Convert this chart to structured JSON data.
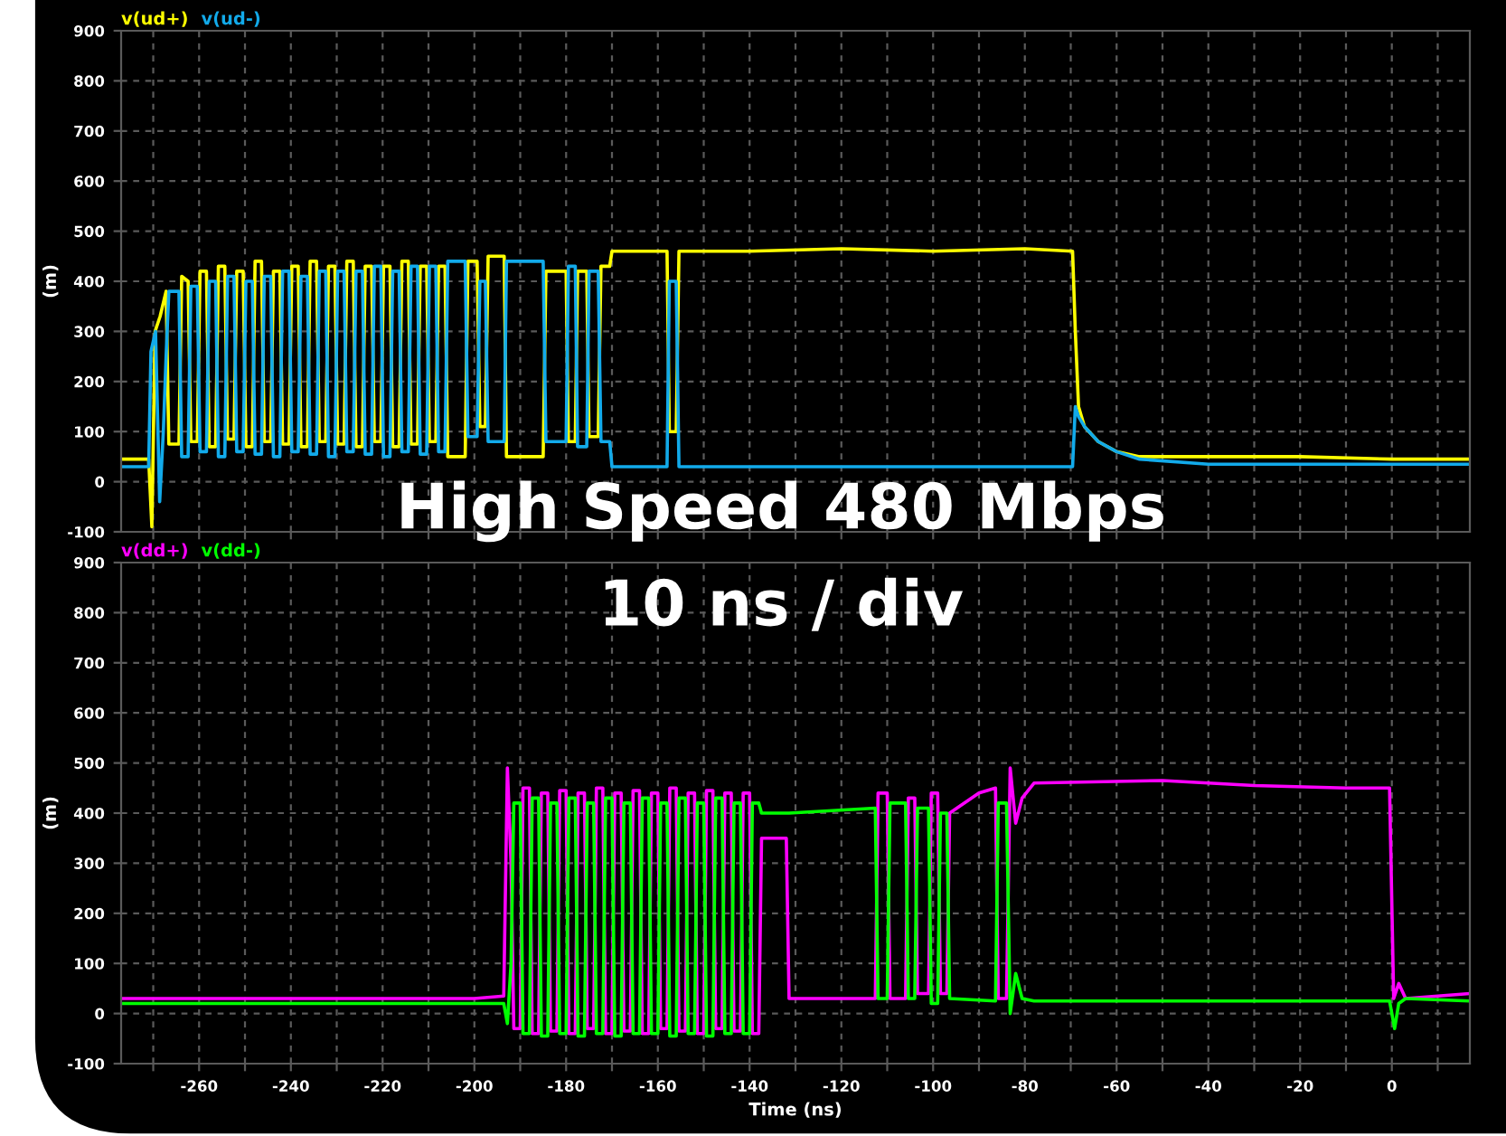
{
  "chart_data": [
    {
      "type": "line",
      "ylabel": "(m)",
      "legend": "top left",
      "grid": true,
      "tick_labels": "y",
      "xlim": [
        -277,
        17
      ],
      "ylim": [
        -100,
        900
      ],
      "xticks": [
        {
          "value": -270,
          "label": null
        },
        -260,
        {
          "value": -250,
          "label": null
        },
        -240,
        {
          "value": -230,
          "label": null
        },
        -220,
        {
          "value": -210,
          "label": null
        },
        -200,
        {
          "value": -190,
          "label": null
        },
        -180,
        {
          "value": -170,
          "label": null
        },
        -160,
        {
          "value": -150,
          "label": null
        },
        -140,
        {
          "value": -130,
          "label": null
        },
        -120,
        {
          "value": -110,
          "label": null
        },
        -100,
        {
          "value": -90,
          "label": null
        },
        -80,
        {
          "value": -70,
          "label": null
        },
        -60,
        {
          "value": -50,
          "label": null
        },
        -40,
        {
          "value": -30,
          "label": null
        },
        -20,
        {
          "value": -10,
          "label": null
        },
        0,
        {
          "value": 10,
          "label": null
        }
      ],
      "yticks": [
        -100,
        0,
        100,
        200,
        300,
        400,
        500,
        600,
        700,
        800,
        900
      ],
      "series": [
        {
          "name": "v(ud+)",
          "color": "#ffff00",
          "x": [
            -277,
            -271,
            -270.3,
            -269.6,
            -268.5,
            -267.2,
            -266.6,
            -264.4,
            -263.8,
            -262.4,
            -261.8,
            -260.4,
            -259.8,
            -258.4,
            -257.8,
            -256.4,
            -255.8,
            -254.4,
            -253.8,
            -252.4,
            -251.8,
            -250.4,
            -249.8,
            -248.4,
            -247.8,
            -246.4,
            -245.8,
            -244.4,
            -243.8,
            -242.4,
            -241.8,
            -240.4,
            -239.8,
            -238.4,
            -237.8,
            -236.4,
            -235.8,
            -234.4,
            -233.8,
            -232.4,
            -231.8,
            -230.4,
            -229.8,
            -228.4,
            -227.8,
            -226.4,
            -225.8,
            -224.4,
            -223.8,
            -222.4,
            -221.8,
            -220.4,
            -219.8,
            -218.4,
            -217.8,
            -216.4,
            -215.8,
            -214.4,
            -213.8,
            -212.4,
            -211.8,
            -210.4,
            -209.8,
            -208.4,
            -207.8,
            -206.4,
            -205.8,
            -202,
            -201.4,
            -199.4,
            -198.8,
            -197.6,
            -197,
            -193.5,
            -193,
            -185,
            -184.4,
            -180,
            -179.5,
            -178,
            -177.5,
            -175.5,
            -175,
            -173,
            -172.4,
            -170.5,
            -170,
            -158,
            -157.5,
            -156,
            -155.4,
            -140,
            -120,
            -100,
            -80,
            -69.6,
            -69,
            -68.3,
            -67,
            -64,
            -60,
            -55,
            -40,
            -20,
            0,
            17
          ],
          "values": [
            45,
            45,
            -90,
            300,
            330,
            380,
            75,
            75,
            410,
            400,
            80,
            80,
            420,
            420,
            70,
            70,
            430,
            430,
            85,
            85,
            420,
            420,
            70,
            70,
            440,
            440,
            80,
            80,
            420,
            420,
            75,
            75,
            430,
            430,
            70,
            70,
            440,
            440,
            80,
            80,
            430,
            430,
            75,
            75,
            440,
            440,
            70,
            70,
            430,
            430,
            80,
            80,
            430,
            430,
            70,
            70,
            440,
            440,
            75,
            75,
            430,
            430,
            80,
            80,
            430,
            430,
            50,
            50,
            440,
            440,
            110,
            110,
            450,
            450,
            50,
            50,
            420,
            420,
            80,
            80,
            420,
            420,
            90,
            90,
            430,
            430,
            460,
            460,
            100,
            100,
            460,
            460,
            465,
            460,
            465,
            460,
            300,
            150,
            110,
            80,
            60,
            50,
            50,
            50,
            45,
            45
          ]
        },
        {
          "name": "v(ud-)",
          "color": "#12aaea",
          "x": [
            -277,
            -271,
            -270.5,
            -269.5,
            -268.6,
            -267.8,
            -267.2,
            -266.6,
            -264.4,
            -263.8,
            -262.4,
            -261.8,
            -260.4,
            -259.8,
            -258.4,
            -257.8,
            -256.4,
            -255.8,
            -254.4,
            -253.8,
            -252.4,
            -251.8,
            -250.4,
            -249.8,
            -248.4,
            -247.8,
            -246.4,
            -245.8,
            -244.4,
            -243.8,
            -242.4,
            -241.8,
            -240.4,
            -239.8,
            -238.4,
            -237.8,
            -236.4,
            -235.8,
            -234.4,
            -233.8,
            -232.4,
            -231.8,
            -230.4,
            -229.8,
            -228.4,
            -227.8,
            -226.4,
            -225.8,
            -224.4,
            -223.8,
            -222.4,
            -221.8,
            -220.4,
            -219.8,
            -218.4,
            -217.8,
            -216.4,
            -215.8,
            -214.4,
            -213.8,
            -212.4,
            -211.8,
            -210.4,
            -209.8,
            -208.4,
            -207.8,
            -206.4,
            -205.8,
            -202,
            -201.4,
            -199.4,
            -198.8,
            -197.6,
            -197,
            -193.5,
            -193,
            -185,
            -184.4,
            -180,
            -179.5,
            -178,
            -177.5,
            -175.5,
            -175,
            -173,
            -172.4,
            -170.5,
            -170,
            -158,
            -157.5,
            -156,
            -155.4,
            -120,
            -90,
            -69.6,
            -69,
            -68.3,
            -67,
            -64,
            -60,
            -55,
            -40,
            -20,
            0,
            17
          ],
          "values": [
            30,
            30,
            260,
            300,
            -40,
            100,
            250,
            380,
            380,
            50,
            50,
            390,
            390,
            60,
            60,
            400,
            400,
            50,
            50,
            410,
            410,
            60,
            60,
            400,
            400,
            55,
            55,
            410,
            410,
            50,
            50,
            420,
            420,
            60,
            60,
            410,
            410,
            55,
            55,
            420,
            420,
            50,
            50,
            420,
            420,
            60,
            60,
            420,
            420,
            55,
            55,
            430,
            430,
            50,
            50,
            420,
            420,
            60,
            60,
            430,
            430,
            55,
            55,
            430,
            430,
            60,
            60,
            440,
            440,
            90,
            90,
            400,
            400,
            80,
            80,
            440,
            440,
            80,
            80,
            430,
            430,
            70,
            70,
            420,
            420,
            80,
            80,
            30,
            30,
            400,
            400,
            30,
            30,
            30,
            30,
            150,
            130,
            110,
            80,
            60,
            45,
            35,
            35,
            35,
            35
          ]
        }
      ]
    },
    {
      "type": "line",
      "ylabel": "(m)",
      "xlabel": "Time (ns)",
      "legend": "top left",
      "grid": true,
      "annotations": [
        "High Speed 480 Mbps",
        "10 ns / div"
      ],
      "xlim": [
        -277,
        17
      ],
      "ylim": [
        -100,
        900
      ],
      "xticks": [
        {
          "value": -270,
          "label": null
        },
        -260,
        {
          "value": -250,
          "label": null
        },
        -240,
        {
          "value": -230,
          "label": null
        },
        -220,
        {
          "value": -210,
          "label": null
        },
        -200,
        {
          "value": -190,
          "label": null
        },
        -180,
        {
          "value": -170,
          "label": null
        },
        -160,
        {
          "value": -150,
          "label": null
        },
        -140,
        {
          "value": -130,
          "label": null
        },
        -120,
        {
          "value": -110,
          "label": null
        },
        -100,
        {
          "value": -90,
          "label": null
        },
        -80,
        {
          "value": -70,
          "label": null
        },
        -60,
        {
          "value": -50,
          "label": null
        },
        -40,
        {
          "value": -30,
          "label": null
        },
        -20,
        {
          "value": -10,
          "label": null
        },
        0,
        {
          "value": 10,
          "label": null
        }
      ],
      "yticks": [
        -100,
        0,
        100,
        200,
        300,
        400,
        500,
        600,
        700,
        800,
        900
      ],
      "series": [
        {
          "name": "v(dd+)",
          "color": "#ff00ff",
          "x": [
            -277,
            -240,
            -200,
            -193.6,
            -192.8,
            -192,
            -191.4,
            -190,
            -189.4,
            -188,
            -187.4,
            -186,
            -185.4,
            -184,
            -183.4,
            -182,
            -181.4,
            -180,
            -179.4,
            -178,
            -177.4,
            -176,
            -175.4,
            -174,
            -173.4,
            -172,
            -171.4,
            -170,
            -169.4,
            -168,
            -167.4,
            -166,
            -165.4,
            -164,
            -163.4,
            -162,
            -161.4,
            -160,
            -159.4,
            -158,
            -157.4,
            -156,
            -155.4,
            -154,
            -153.4,
            -152,
            -151.4,
            -150,
            -149.4,
            -148,
            -147.4,
            -146,
            -145.4,
            -144,
            -143.4,
            -142,
            -141.4,
            -140,
            -139.4,
            -138,
            -137.4,
            -132,
            -131.4,
            -112.6,
            -112,
            -110,
            -109.4,
            -106,
            -105.4,
            -104,
            -103.4,
            -101,
            -100.4,
            -99,
            -98.4,
            -97,
            -96.4,
            -90,
            -86.4,
            -85.8,
            -84,
            -83.2,
            -82,
            -80.6,
            -78,
            -50,
            -30,
            -10,
            -0.5,
            0.4,
            1.5,
            3,
            17
          ],
          "values": [
            30,
            30,
            30,
            35,
            490,
            300,
            -30,
            -30,
            450,
            450,
            -40,
            -40,
            440,
            440,
            -35,
            -35,
            445,
            445,
            -40,
            -40,
            440,
            440,
            -30,
            -30,
            450,
            450,
            -40,
            -40,
            440,
            440,
            -35,
            -35,
            445,
            445,
            -40,
            -40,
            440,
            440,
            -30,
            -30,
            450,
            450,
            -35,
            -35,
            440,
            440,
            -40,
            -40,
            445,
            445,
            -30,
            -30,
            440,
            440,
            -35,
            -35,
            440,
            440,
            -40,
            -40,
            350,
            350,
            30,
            30,
            440,
            440,
            30,
            30,
            430,
            430,
            40,
            40,
            440,
            440,
            40,
            40,
            400,
            440,
            450,
            30,
            30,
            490,
            380,
            430,
            460,
            465,
            455,
            450,
            450,
            30,
            60,
            30,
            40
          ]
        },
        {
          "name": "v(dd-)",
          "color": "#00ff00",
          "x": [
            -277,
            -200,
            -193.6,
            -192.8,
            -192,
            -191.4,
            -190,
            -189.4,
            -188,
            -187.4,
            -186,
            -185.4,
            -184,
            -183.4,
            -182,
            -181.4,
            -180,
            -179.4,
            -178,
            -177.4,
            -176,
            -175.4,
            -174,
            -173.4,
            -172,
            -171.4,
            -170,
            -169.4,
            -168,
            -167.4,
            -166,
            -165.4,
            -164,
            -163.4,
            -162,
            -161.4,
            -160,
            -159.4,
            -158,
            -157.4,
            -156,
            -155.4,
            -154,
            -153.4,
            -152,
            -151.4,
            -150,
            -149.4,
            -148,
            -147.4,
            -146,
            -145.4,
            -144,
            -143.4,
            -142,
            -141.4,
            -140,
            -139.4,
            -138,
            -137.4,
            -132,
            -131.4,
            -112.6,
            -112,
            -110,
            -109.4,
            -106,
            -105.4,
            -104,
            -103.4,
            -101,
            -100.4,
            -99,
            -98.4,
            -97,
            -96.4,
            -86.4,
            -85.8,
            -84,
            -83.2,
            -82,
            -80.6,
            -78,
            -50,
            -30,
            -10,
            -0.5,
            0.6,
            1.5,
            3,
            17
          ],
          "values": [
            20,
            20,
            20,
            -20,
            100,
            420,
            420,
            -40,
            -40,
            430,
            430,
            -45,
            -45,
            420,
            420,
            -40,
            -40,
            430,
            430,
            -45,
            -45,
            420,
            420,
            -40,
            -40,
            430,
            430,
            -45,
            -45,
            420,
            420,
            -40,
            -40,
            430,
            430,
            -40,
            -40,
            420,
            420,
            -45,
            -45,
            430,
            430,
            -40,
            -40,
            420,
            420,
            -45,
            -45,
            430,
            430,
            -40,
            -40,
            420,
            420,
            -40,
            -40,
            420,
            420,
            400,
            400,
            400,
            410,
            30,
            30,
            420,
            420,
            30,
            30,
            410,
            410,
            20,
            20,
            400,
            400,
            30,
            25,
            420,
            420,
            0,
            80,
            30,
            25,
            25,
            25,
            25,
            25,
            -30,
            20,
            30,
            25
          ]
        }
      ]
    }
  ]
}
